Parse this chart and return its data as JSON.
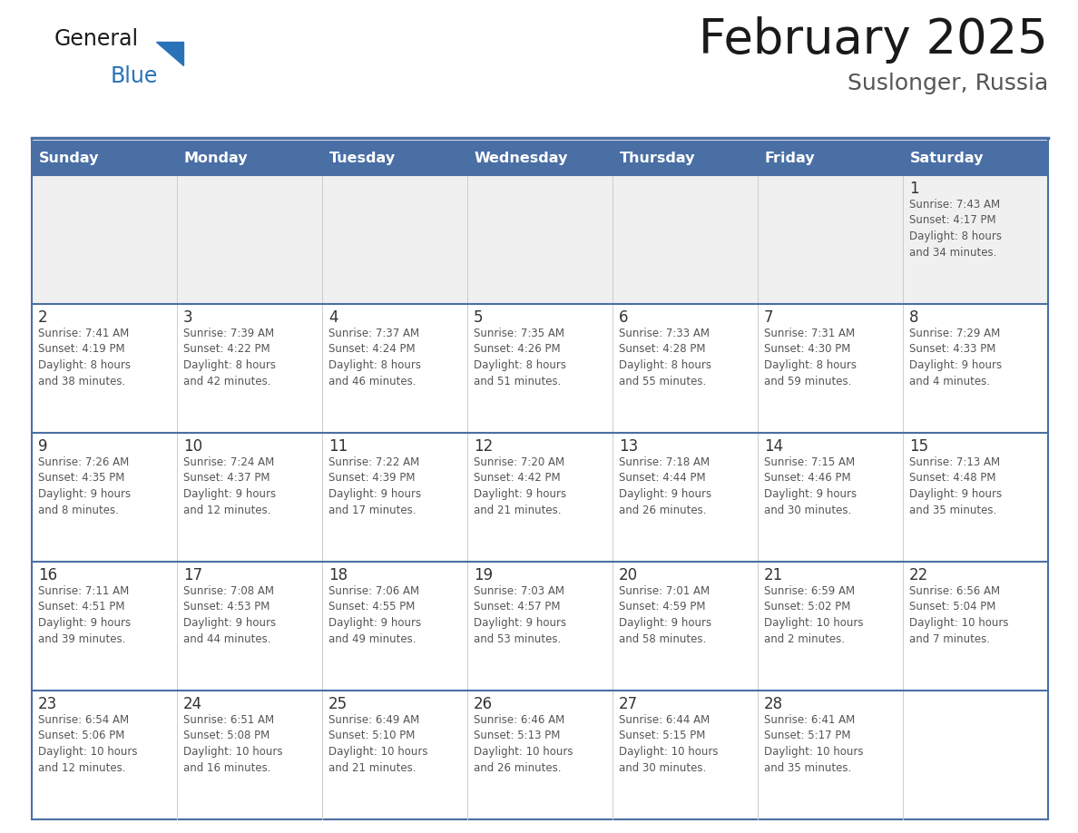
{
  "title": "February 2025",
  "subtitle": "Suslonger, Russia",
  "days_of_week": [
    "Sunday",
    "Monday",
    "Tuesday",
    "Wednesday",
    "Thursday",
    "Friday",
    "Saturday"
  ],
  "header_bg": "#4a6fa5",
  "header_text_color": "#ffffff",
  "cell_bg_white": "#ffffff",
  "cell_bg_gray": "#f0f0f0",
  "week_border_color": "#4a6fa5",
  "col_border_color": "#cccccc",
  "day_number_color": "#333333",
  "text_color": "#555555",
  "title_color": "#1a1a1a",
  "subtitle_color": "#555555",
  "logo_general_color": "#1a1a1a",
  "logo_blue_color": "#2a72b8",
  "calendar_data": [
    [
      {
        "day": null,
        "info": null
      },
      {
        "day": null,
        "info": null
      },
      {
        "day": null,
        "info": null
      },
      {
        "day": null,
        "info": null
      },
      {
        "day": null,
        "info": null
      },
      {
        "day": null,
        "info": null
      },
      {
        "day": 1,
        "info": "Sunrise: 7:43 AM\nSunset: 4:17 PM\nDaylight: 8 hours\nand 34 minutes."
      }
    ],
    [
      {
        "day": 2,
        "info": "Sunrise: 7:41 AM\nSunset: 4:19 PM\nDaylight: 8 hours\nand 38 minutes."
      },
      {
        "day": 3,
        "info": "Sunrise: 7:39 AM\nSunset: 4:22 PM\nDaylight: 8 hours\nand 42 minutes."
      },
      {
        "day": 4,
        "info": "Sunrise: 7:37 AM\nSunset: 4:24 PM\nDaylight: 8 hours\nand 46 minutes."
      },
      {
        "day": 5,
        "info": "Sunrise: 7:35 AM\nSunset: 4:26 PM\nDaylight: 8 hours\nand 51 minutes."
      },
      {
        "day": 6,
        "info": "Sunrise: 7:33 AM\nSunset: 4:28 PM\nDaylight: 8 hours\nand 55 minutes."
      },
      {
        "day": 7,
        "info": "Sunrise: 7:31 AM\nSunset: 4:30 PM\nDaylight: 8 hours\nand 59 minutes."
      },
      {
        "day": 8,
        "info": "Sunrise: 7:29 AM\nSunset: 4:33 PM\nDaylight: 9 hours\nand 4 minutes."
      }
    ],
    [
      {
        "day": 9,
        "info": "Sunrise: 7:26 AM\nSunset: 4:35 PM\nDaylight: 9 hours\nand 8 minutes."
      },
      {
        "day": 10,
        "info": "Sunrise: 7:24 AM\nSunset: 4:37 PM\nDaylight: 9 hours\nand 12 minutes."
      },
      {
        "day": 11,
        "info": "Sunrise: 7:22 AM\nSunset: 4:39 PM\nDaylight: 9 hours\nand 17 minutes."
      },
      {
        "day": 12,
        "info": "Sunrise: 7:20 AM\nSunset: 4:42 PM\nDaylight: 9 hours\nand 21 minutes."
      },
      {
        "day": 13,
        "info": "Sunrise: 7:18 AM\nSunset: 4:44 PM\nDaylight: 9 hours\nand 26 minutes."
      },
      {
        "day": 14,
        "info": "Sunrise: 7:15 AM\nSunset: 4:46 PM\nDaylight: 9 hours\nand 30 minutes."
      },
      {
        "day": 15,
        "info": "Sunrise: 7:13 AM\nSunset: 4:48 PM\nDaylight: 9 hours\nand 35 minutes."
      }
    ],
    [
      {
        "day": 16,
        "info": "Sunrise: 7:11 AM\nSunset: 4:51 PM\nDaylight: 9 hours\nand 39 minutes."
      },
      {
        "day": 17,
        "info": "Sunrise: 7:08 AM\nSunset: 4:53 PM\nDaylight: 9 hours\nand 44 minutes."
      },
      {
        "day": 18,
        "info": "Sunrise: 7:06 AM\nSunset: 4:55 PM\nDaylight: 9 hours\nand 49 minutes."
      },
      {
        "day": 19,
        "info": "Sunrise: 7:03 AM\nSunset: 4:57 PM\nDaylight: 9 hours\nand 53 minutes."
      },
      {
        "day": 20,
        "info": "Sunrise: 7:01 AM\nSunset: 4:59 PM\nDaylight: 9 hours\nand 58 minutes."
      },
      {
        "day": 21,
        "info": "Sunrise: 6:59 AM\nSunset: 5:02 PM\nDaylight: 10 hours\nand 2 minutes."
      },
      {
        "day": 22,
        "info": "Sunrise: 6:56 AM\nSunset: 5:04 PM\nDaylight: 10 hours\nand 7 minutes."
      }
    ],
    [
      {
        "day": 23,
        "info": "Sunrise: 6:54 AM\nSunset: 5:06 PM\nDaylight: 10 hours\nand 12 minutes."
      },
      {
        "day": 24,
        "info": "Sunrise: 6:51 AM\nSunset: 5:08 PM\nDaylight: 10 hours\nand 16 minutes."
      },
      {
        "day": 25,
        "info": "Sunrise: 6:49 AM\nSunset: 5:10 PM\nDaylight: 10 hours\nand 21 minutes."
      },
      {
        "day": 26,
        "info": "Sunrise: 6:46 AM\nSunset: 5:13 PM\nDaylight: 10 hours\nand 26 minutes."
      },
      {
        "day": 27,
        "info": "Sunrise: 6:44 AM\nSunset: 5:15 PM\nDaylight: 10 hours\nand 30 minutes."
      },
      {
        "day": 28,
        "info": "Sunrise: 6:41 AM\nSunset: 5:17 PM\nDaylight: 10 hours\nand 35 minutes."
      },
      {
        "day": null,
        "info": null
      }
    ]
  ]
}
